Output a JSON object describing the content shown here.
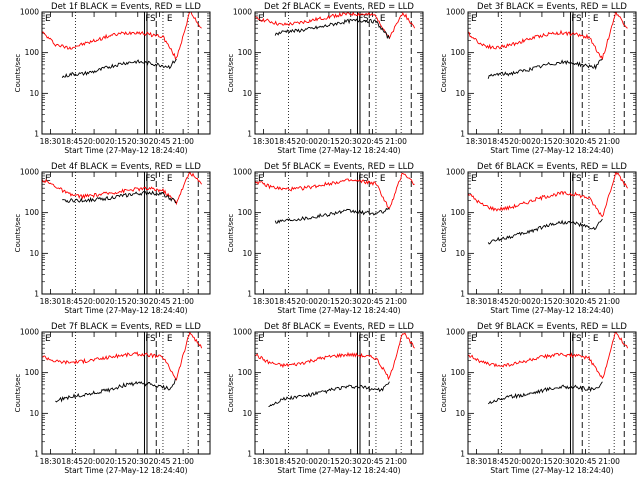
{
  "figure": {
    "colors": {
      "events": "#000000",
      "lld": "#ff0000",
      "background": "#ffffff"
    }
  },
  "chart_data": [
    {
      "type": "line",
      "title": "Det 1f BLACK = Events, RED = LLD",
      "xlabel": "Start Time (27-May-12 18:24:40)",
      "ylabel": "Counts/sec",
      "yscale": "log",
      "ylim": [
        1,
        1000
      ],
      "yticks": [
        "1",
        "10",
        "100",
        "1000"
      ],
      "xticks": [
        "18:30",
        "18:45",
        "20:00",
        "20:15",
        "20:30",
        "20:45",
        "21:00"
      ],
      "markers": [
        "F",
        "S",
        "E"
      ],
      "series": [
        {
          "name": "LLD",
          "color": "#ff0000",
          "x": [
            0,
            8,
            16,
            24,
            32,
            40,
            48,
            56,
            64,
            72,
            80,
            88,
            95
          ],
          "y": [
            320,
            160,
            130,
            160,
            200,
            260,
            300,
            320,
            280,
            250,
            70,
            1000,
            400
          ]
        },
        {
          "name": "Events",
          "color": "#000000",
          "x": [
            12,
            18,
            24,
            32,
            40,
            48,
            56,
            64,
            70,
            76,
            80
          ],
          "y": [
            25,
            30,
            30,
            35,
            45,
            55,
            60,
            55,
            50,
            45,
            70
          ]
        }
      ]
    },
    {
      "type": "line",
      "title": "Det 2f BLACK = Events, RED = LLD",
      "xlabel": "Start Time (27-May-12 18:24:40)",
      "ylabel": "Counts/sec",
      "yscale": "log",
      "ylim": [
        1,
        1000
      ],
      "yticks": [
        "1",
        "10",
        "100",
        "1000"
      ],
      "xticks": [
        "18:30",
        "18:45",
        "20:00",
        "20:15",
        "20:30",
        "20:45",
        "21:00"
      ],
      "markers": [
        "F",
        "S",
        "E"
      ],
      "series": [
        {
          "name": "LLD",
          "color": "#ff0000",
          "x": [
            0,
            8,
            16,
            24,
            32,
            40,
            48,
            56,
            64,
            72,
            80,
            88,
            95
          ],
          "y": [
            700,
            600,
            480,
            520,
            600,
            700,
            820,
            900,
            880,
            820,
            220,
            1000,
            400
          ]
        },
        {
          "name": "Events",
          "color": "#000000",
          "x": [
            12,
            18,
            24,
            32,
            40,
            48,
            56,
            64,
            72,
            80
          ],
          "y": [
            280,
            340,
            340,
            380,
            430,
            520,
            600,
            620,
            580,
            220
          ]
        }
      ]
    },
    {
      "type": "line",
      "title": "Det 3f BLACK = Events, RED = LLD",
      "xlabel": "Start Time (27-May-12 18:24:40)",
      "ylabel": "Counts/sec",
      "yscale": "log",
      "ylim": [
        1,
        1000
      ],
      "yticks": [
        "1",
        "10",
        "100",
        "1000"
      ],
      "xticks": [
        "18:30",
        "18:45",
        "20:00",
        "20:15",
        "20:30",
        "20:45",
        "21:00"
      ],
      "markers": [
        "F",
        "S",
        "E"
      ],
      "series": [
        {
          "name": "LLD",
          "color": "#ff0000",
          "x": [
            0,
            8,
            16,
            24,
            32,
            40,
            48,
            56,
            64,
            72,
            80,
            88,
            95
          ],
          "y": [
            300,
            160,
            130,
            150,
            190,
            240,
            290,
            310,
            280,
            240,
            70,
            1000,
            400
          ]
        },
        {
          "name": "Events",
          "color": "#000000",
          "x": [
            12,
            18,
            24,
            32,
            40,
            48,
            56,
            64,
            70,
            76,
            80
          ],
          "y": [
            25,
            30,
            30,
            35,
            42,
            52,
            58,
            55,
            48,
            45,
            70
          ]
        }
      ]
    },
    {
      "type": "line",
      "title": "Det 4f BLACK = Events, RED = LLD",
      "xlabel": "Start Time (27-May-12 18:24:40)",
      "ylabel": "Counts/sec",
      "yscale": "log",
      "ylim": [
        1,
        1000
      ],
      "yticks": [
        "1",
        "10",
        "100",
        "1000"
      ],
      "xticks": [
        "18:30",
        "18:45",
        "20:00",
        "20:15",
        "20:30",
        "20:45",
        "21:00"
      ],
      "markers": [
        "F",
        "S",
        "E"
      ],
      "series": [
        {
          "name": "LLD",
          "color": "#ff0000",
          "x": [
            0,
            8,
            16,
            24,
            32,
            40,
            48,
            56,
            64,
            72,
            80,
            88,
            95
          ],
          "y": [
            650,
            450,
            280,
            250,
            270,
            300,
            340,
            380,
            390,
            350,
            180,
            1000,
            500
          ]
        },
        {
          "name": "Events",
          "color": "#000000",
          "x": [
            12,
            18,
            24,
            32,
            40,
            48,
            56,
            64,
            72,
            80
          ],
          "y": [
            190,
            200,
            200,
            210,
            230,
            260,
            290,
            310,
            290,
            180
          ]
        }
      ]
    },
    {
      "type": "line",
      "title": "Det 5f BLACK = Events, RED = LLD",
      "xlabel": "Start Time (27-May-12 18:24:40)",
      "ylabel": "Counts/sec",
      "yscale": "log",
      "ylim": [
        1,
        1000
      ],
      "yticks": [
        "1",
        "10",
        "100",
        "1000"
      ],
      "xticks": [
        "18:30",
        "18:45",
        "20:00",
        "20:15",
        "20:30",
        "20:45",
        "21:00"
      ],
      "markers": [
        "F",
        "S",
        "E"
      ],
      "series": [
        {
          "name": "LLD",
          "color": "#ff0000",
          "x": [
            0,
            8,
            16,
            24,
            32,
            40,
            48,
            56,
            64,
            72,
            80,
            88,
            95
          ],
          "y": [
            600,
            450,
            380,
            380,
            420,
            480,
            560,
            620,
            580,
            520,
            120,
            1000,
            500
          ]
        },
        {
          "name": "Events",
          "color": "#000000",
          "x": [
            12,
            18,
            24,
            32,
            40,
            48,
            56,
            64,
            72,
            80
          ],
          "y": [
            60,
            65,
            70,
            75,
            85,
            100,
            110,
            100,
            95,
            120
          ]
        }
      ]
    },
    {
      "type": "line",
      "title": "Det 6f BLACK = Events, RED = LLD",
      "xlabel": "Start Time (27-May-12 18:24:40)",
      "ylabel": "Counts/sec",
      "yscale": "log",
      "ylim": [
        1,
        1000
      ],
      "yticks": [
        "1",
        "10",
        "100",
        "1000"
      ],
      "xticks": [
        "18:30",
        "18:45",
        "20:00",
        "20:15",
        "20:30",
        "20:45",
        "21:00"
      ],
      "markers": [
        "F",
        "S",
        "E"
      ],
      "series": [
        {
          "name": "LLD",
          "color": "#ff0000",
          "x": [
            0,
            8,
            16,
            24,
            32,
            40,
            48,
            56,
            64,
            72,
            80,
            88,
            95
          ],
          "y": [
            300,
            160,
            120,
            130,
            160,
            210,
            260,
            300,
            280,
            230,
            80,
            1000,
            400
          ]
        },
        {
          "name": "Events",
          "color": "#000000",
          "x": [
            12,
            18,
            24,
            32,
            40,
            48,
            56,
            64,
            70,
            76,
            80
          ],
          "y": [
            18,
            22,
            25,
            30,
            38,
            50,
            58,
            55,
            45,
            40,
            70
          ]
        }
      ]
    },
    {
      "type": "line",
      "title": "Det 7f BLACK = Events, RED = LLD",
      "xlabel": "Start Time (27-May-12 18:24:40)",
      "ylabel": "Counts/sec",
      "yscale": "log",
      "ylim": [
        1,
        1000
      ],
      "yticks": [
        "1",
        "10",
        "100",
        "1000"
      ],
      "xticks": [
        "18:30",
        "18:45",
        "20:00",
        "20:15",
        "20:30",
        "20:45",
        "21:00"
      ],
      "markers": [
        "F",
        "S",
        "E"
      ],
      "series": [
        {
          "name": "LLD",
          "color": "#ff0000",
          "x": [
            0,
            8,
            16,
            24,
            32,
            40,
            48,
            56,
            64,
            72,
            80,
            88,
            95
          ],
          "y": [
            260,
            190,
            180,
            190,
            210,
            240,
            270,
            290,
            270,
            240,
            70,
            1000,
            400
          ]
        },
        {
          "name": "Events",
          "color": "#000000",
          "x": [
            8,
            16,
            24,
            32,
            40,
            48,
            56,
            64,
            70,
            76,
            80
          ],
          "y": [
            20,
            25,
            28,
            32,
            38,
            48,
            55,
            52,
            45,
            40,
            70
          ]
        }
      ]
    },
    {
      "type": "line",
      "title": "Det 8f BLACK = Events, RED = LLD",
      "xlabel": "Start Time (27-May-12 18:24:40)",
      "ylabel": "Counts/sec",
      "yscale": "log",
      "ylim": [
        1,
        1000
      ],
      "yticks": [
        "1",
        "10",
        "100",
        "1000"
      ],
      "xticks": [
        "18:30",
        "18:45",
        "20:00",
        "20:15",
        "20:30",
        "20:45",
        "21:00"
      ],
      "markers": [
        "F",
        "S",
        "E"
      ],
      "series": [
        {
          "name": "LLD",
          "color": "#ff0000",
          "x": [
            0,
            8,
            16,
            24,
            32,
            40,
            48,
            56,
            64,
            72,
            80,
            88,
            95
          ],
          "y": [
            280,
            180,
            150,
            160,
            190,
            230,
            260,
            280,
            260,
            230,
            70,
            1000,
            400
          ]
        },
        {
          "name": "Events",
          "color": "#000000",
          "x": [
            8,
            16,
            24,
            32,
            40,
            48,
            56,
            64,
            70,
            76,
            80
          ],
          "y": [
            15,
            22,
            25,
            28,
            33,
            40,
            45,
            44,
            40,
            38,
            60
          ]
        }
      ]
    },
    {
      "type": "line",
      "title": "Det 9f BLACK = Events, RED = LLD",
      "xlabel": "Start Time (27-May-12 18:24:40)",
      "ylabel": "Counts/sec",
      "yscale": "log",
      "ylim": [
        1,
        1000
      ],
      "yticks": [
        "1",
        "10",
        "100",
        "1000"
      ],
      "xticks": [
        "18:30",
        "18:45",
        "20:00",
        "20:15",
        "20:30",
        "20:45",
        "21:00"
      ],
      "markers": [
        "F",
        "S",
        "E"
      ],
      "series": [
        {
          "name": "LLD",
          "color": "#ff0000",
          "x": [
            0,
            8,
            16,
            24,
            32,
            40,
            48,
            56,
            64,
            72,
            80,
            88,
            95
          ],
          "y": [
            280,
            180,
            150,
            155,
            180,
            220,
            260,
            280,
            260,
            230,
            70,
            1000,
            400
          ]
        },
        {
          "name": "Events",
          "color": "#000000",
          "x": [
            12,
            18,
            24,
            32,
            40,
            48,
            56,
            64,
            70,
            76,
            80
          ],
          "y": [
            18,
            22,
            25,
            28,
            33,
            40,
            45,
            44,
            40,
            38,
            60
          ]
        }
      ]
    }
  ]
}
